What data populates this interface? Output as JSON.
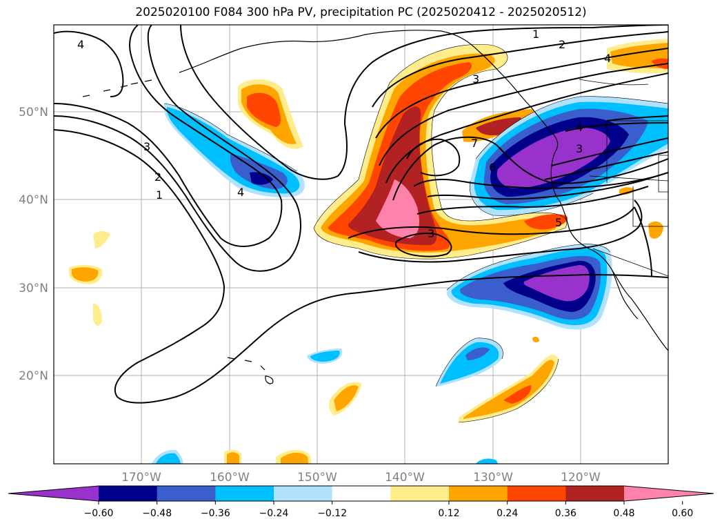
{
  "title": "2025020100 F084 300 hPa PV, precipitation PC (2025020412 - 2025020512)",
  "map": {
    "lat_labels": [
      "50°N",
      "40°N",
      "30°N",
      "20°N"
    ],
    "lon_labels": [
      "170°W",
      "160°W",
      "150°W",
      "140°W",
      "130°W",
      "120°W"
    ],
    "pv_contour_labels": [
      "1",
      "2",
      "4",
      "3",
      "2",
      "1",
      "3",
      "4",
      "7",
      "6",
      "5",
      "3",
      "3",
      "4",
      "4"
    ]
  },
  "colorbar": {
    "tick_labels": [
      "−0.60",
      "−0.48",
      "−0.36",
      "−0.24",
      "−0.12",
      "0.12",
      "0.24",
      "0.36",
      "0.48",
      "0.60"
    ],
    "colors": [
      "#9932cc",
      "#00008b",
      "#3a5fcd",
      "#00bfff",
      "#b0e2ff",
      "#ffffff",
      "#ffec8b",
      "#ffa500",
      "#ff4500",
      "#b22222",
      "#ff82ab"
    ]
  }
}
